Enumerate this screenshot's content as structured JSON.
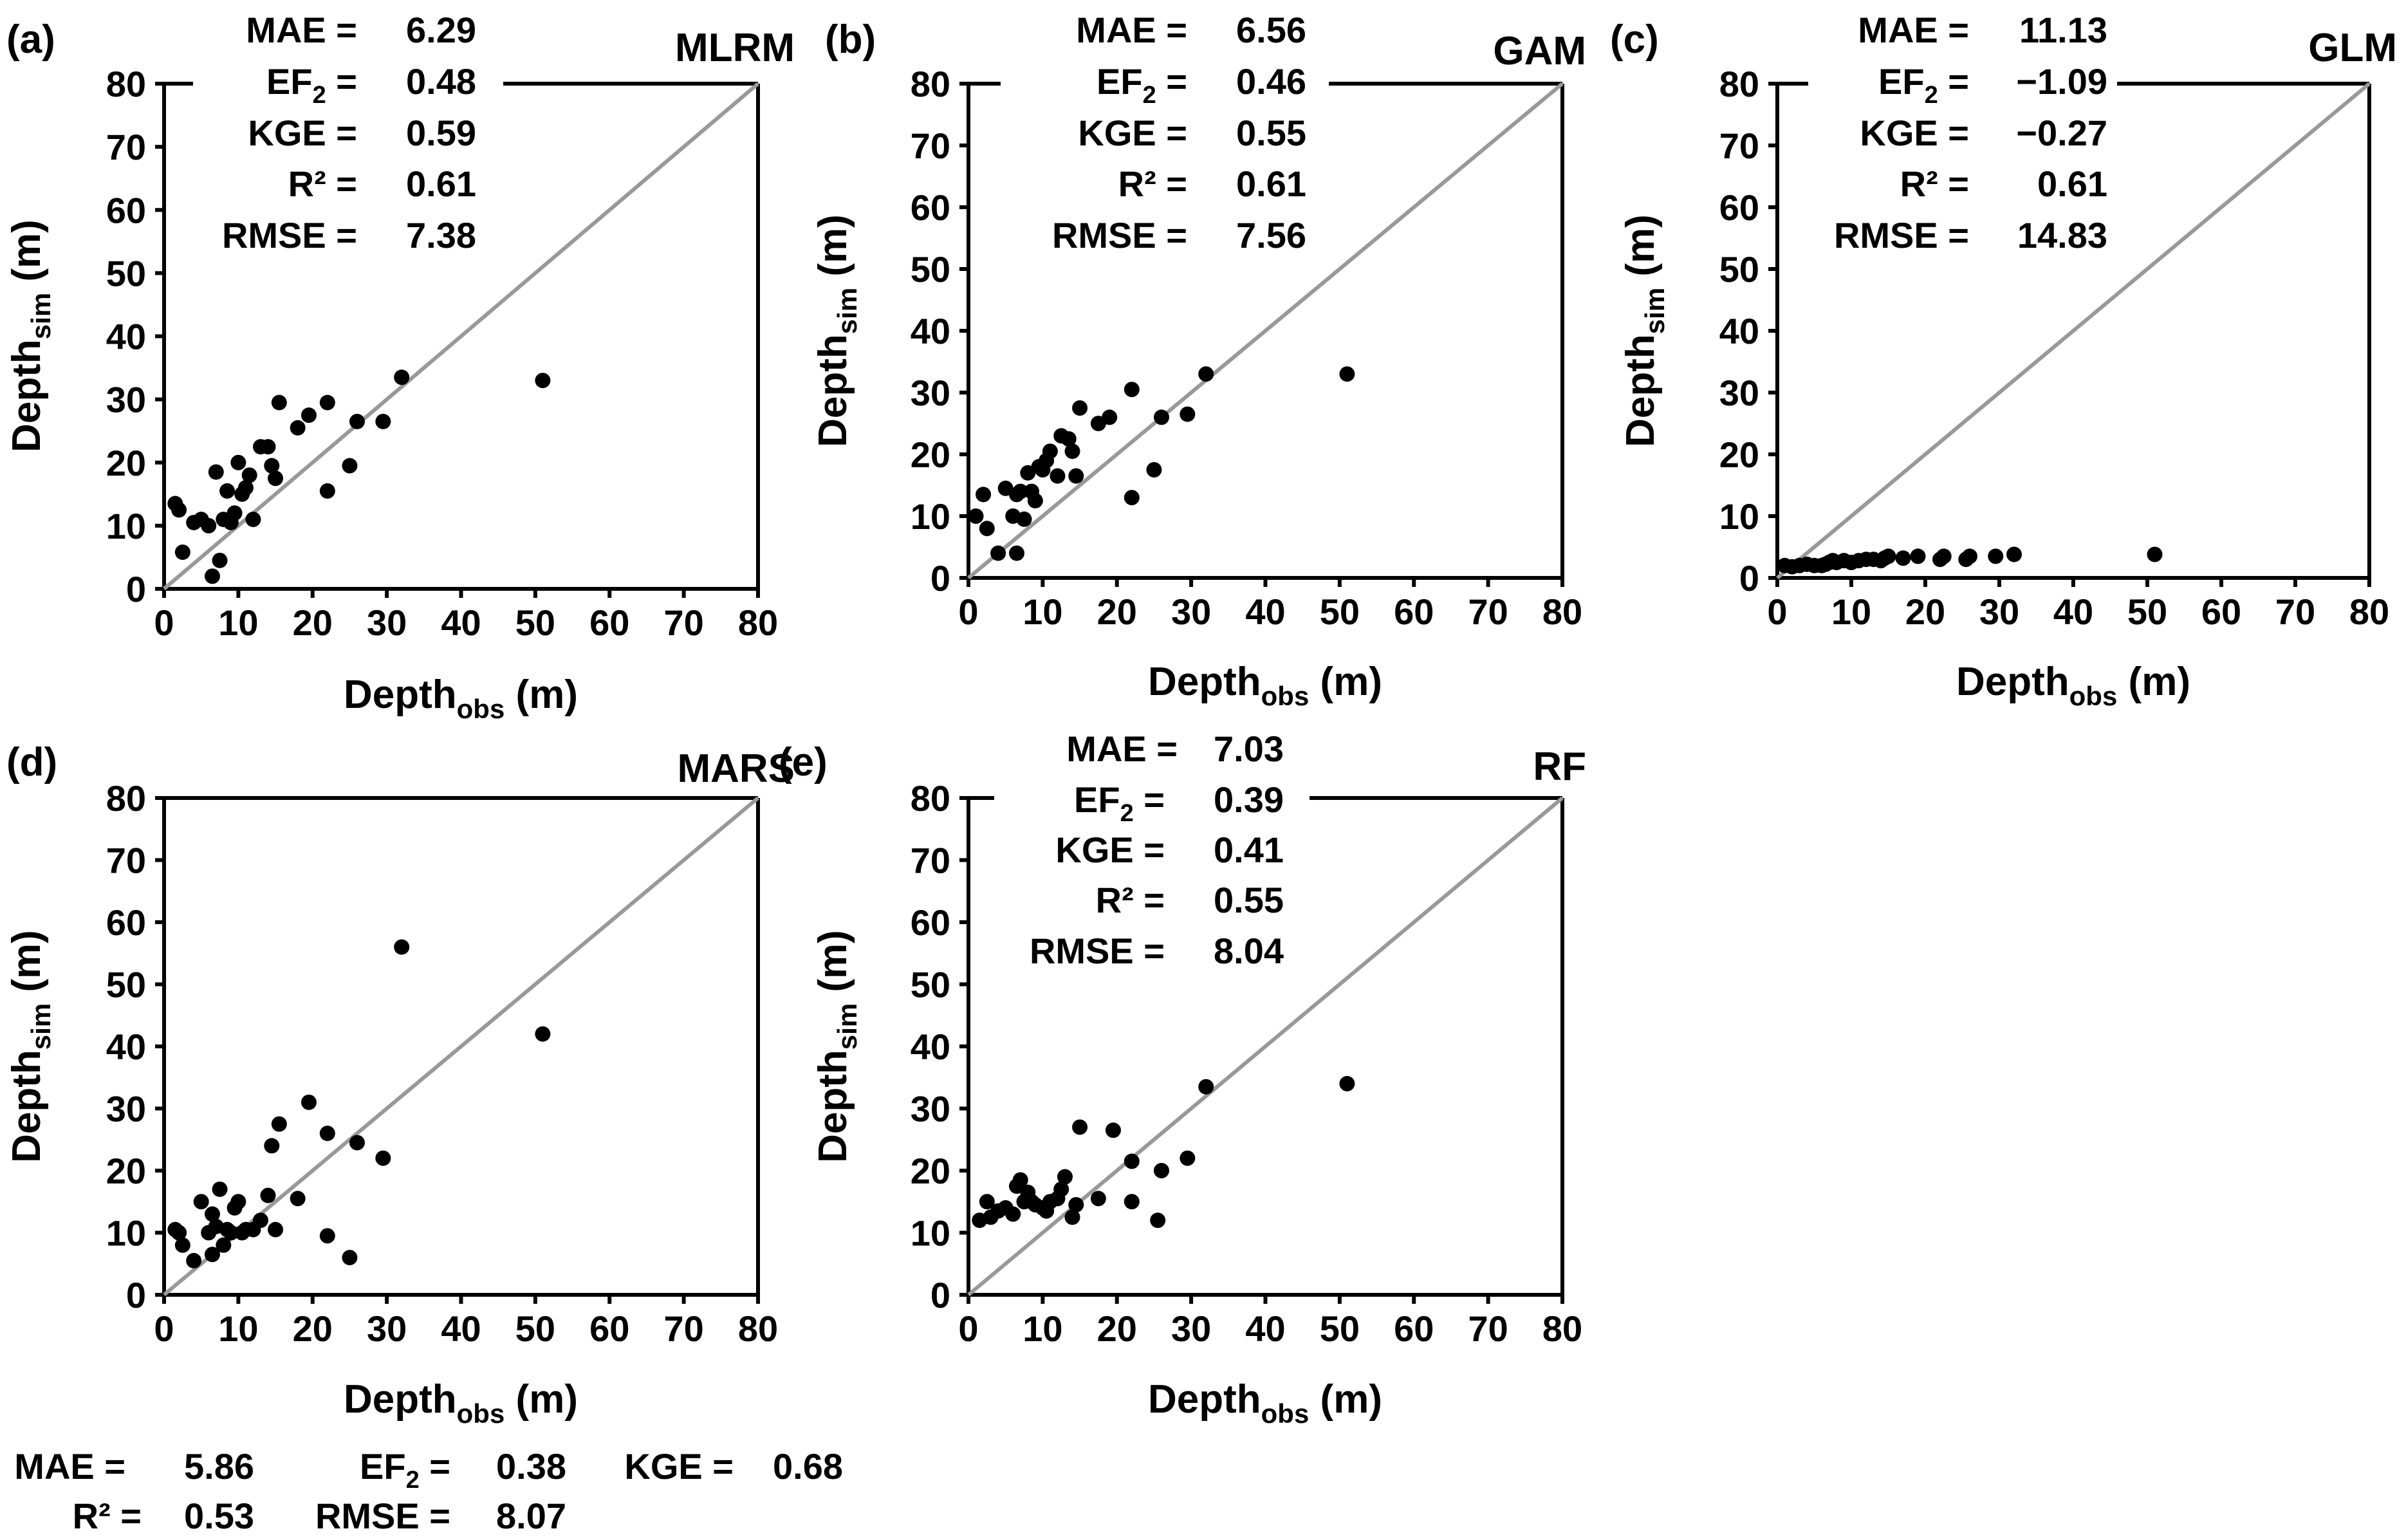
{
  "colors": {
    "axis": "#000000",
    "diagonal": "#999999",
    "points": "#000000",
    "background": "#ffffff"
  },
  "xlabel_main": "Depth",
  "xlabel_sub": "obs",
  "xlabel_unit": " (m)",
  "ylabel_main": "Depth",
  "ylabel_sub": "sim",
  "ylabel_unit": " (m)",
  "stat_names": {
    "mae": "MAE =",
    "ef2_main": "EF",
    "ef2_sub": "2",
    "ef2_eq": " =",
    "kge": "KGE =",
    "r2": "R² =",
    "rmse": "RMSE ="
  },
  "ticks": [
    "0",
    "10",
    "20",
    "30",
    "40",
    "50",
    "60",
    "70",
    "80"
  ],
  "chart_data": [
    {
      "type": "scatter",
      "panel_label": "(a)",
      "model": "MLRM",
      "xlim": [
        0,
        80
      ],
      "ylim": [
        0,
        80
      ],
      "reference_line": "1:1",
      "stats": {
        "mae": "6.29",
        "ef2": "0.48",
        "kge": "0.59",
        "r2": "0.61",
        "rmse": "7.38"
      },
      "points": [
        [
          1.5,
          13.5
        ],
        [
          2,
          12.5
        ],
        [
          2.5,
          5.8
        ],
        [
          4,
          10.5
        ],
        [
          5,
          11
        ],
        [
          6,
          10
        ],
        [
          6.5,
          2
        ],
        [
          7,
          18.5
        ],
        [
          7.5,
          4.5
        ],
        [
          8,
          11
        ],
        [
          8.5,
          15.5
        ],
        [
          9,
          10.5
        ],
        [
          9.5,
          12
        ],
        [
          10,
          20
        ],
        [
          10.5,
          15
        ],
        [
          11,
          16
        ],
        [
          11.5,
          18
        ],
        [
          12,
          11
        ],
        [
          13,
          22.5
        ],
        [
          14,
          22.5
        ],
        [
          14.5,
          19.5
        ],
        [
          15,
          17.5
        ],
        [
          15.5,
          29.5
        ],
        [
          18,
          25.5
        ],
        [
          19.5,
          27.5
        ],
        [
          22,
          15.5
        ],
        [
          22,
          29.5
        ],
        [
          25,
          19.5
        ],
        [
          26,
          26.5
        ],
        [
          29.5,
          26.5
        ],
        [
          32,
          33.5
        ],
        [
          51,
          33
        ]
      ]
    },
    {
      "type": "scatter",
      "panel_label": "(b)",
      "model": "GAM",
      "xlim": [
        0,
        80
      ],
      "ylim": [
        0,
        80
      ],
      "reference_line": "1:1",
      "stats": {
        "mae": "6.56",
        "ef2": "0.46",
        "kge": "0.55",
        "r2": "0.61",
        "rmse": "7.56"
      },
      "points": [
        [
          1,
          10
        ],
        [
          2,
          13.5
        ],
        [
          2.5,
          8
        ],
        [
          4,
          4
        ],
        [
          5,
          14.5
        ],
        [
          6,
          10
        ],
        [
          6.5,
          13.5
        ],
        [
          6.5,
          4
        ],
        [
          7,
          14
        ],
        [
          7.5,
          9.5
        ],
        [
          8,
          17
        ],
        [
          8.5,
          14
        ],
        [
          9,
          12.5
        ],
        [
          9.5,
          18
        ],
        [
          10,
          17.5
        ],
        [
          10.5,
          19
        ],
        [
          11,
          20.5
        ],
        [
          12,
          16.5
        ],
        [
          12.5,
          23
        ],
        [
          13.5,
          22.5
        ],
        [
          14,
          20.5
        ],
        [
          14.5,
          16.5
        ],
        [
          15,
          27.5
        ],
        [
          17.5,
          25
        ],
        [
          19,
          26
        ],
        [
          22,
          13
        ],
        [
          22,
          30.5
        ],
        [
          25,
          17.5
        ],
        [
          26,
          26
        ],
        [
          29.5,
          26.5
        ],
        [
          32,
          33
        ],
        [
          51,
          33
        ]
      ]
    },
    {
      "type": "scatter",
      "panel_label": "(c)",
      "model": "GLM",
      "xlim": [
        0,
        80
      ],
      "ylim": [
        0,
        80
      ],
      "reference_line": "1:1",
      "stats": {
        "mae": "11.13",
        "ef2": "−1.09",
        "kge": "−0.27",
        "r2": "0.61",
        "rmse": "14.83"
      },
      "points": [
        [
          1,
          2
        ],
        [
          2,
          1.8
        ],
        [
          3,
          2
        ],
        [
          4,
          2.2
        ],
        [
          5,
          2
        ],
        [
          6,
          2
        ],
        [
          6.5,
          2.2
        ],
        [
          7,
          2.5
        ],
        [
          7.5,
          2.8
        ],
        [
          8,
          2.5
        ],
        [
          9,
          2.8
        ],
        [
          10,
          2.5
        ],
        [
          11,
          2.8
        ],
        [
          12,
          3
        ],
        [
          13,
          3
        ],
        [
          14,
          2.8
        ],
        [
          14.5,
          3.2
        ],
        [
          15,
          3.5
        ],
        [
          17,
          3.2
        ],
        [
          19,
          3.5
        ],
        [
          22,
          3
        ],
        [
          22.5,
          3.5
        ],
        [
          25.5,
          3
        ],
        [
          26,
          3.5
        ],
        [
          29.5,
          3.5
        ],
        [
          32,
          3.8
        ],
        [
          51,
          3.8
        ]
      ]
    },
    {
      "type": "scatter",
      "panel_label": "(d)",
      "model": "MARS",
      "xlim": [
        0,
        80
      ],
      "ylim": [
        0,
        80
      ],
      "reference_line": "1:1",
      "stats": {
        "mae": "5.86",
        "ef2": "0.38",
        "kge": "0.68",
        "r2": "0.53",
        "rmse": "8.07"
      },
      "points": [
        [
          1.5,
          10.5
        ],
        [
          2,
          10
        ],
        [
          2.5,
          8
        ],
        [
          4,
          5.5
        ],
        [
          5,
          15
        ],
        [
          6,
          10
        ],
        [
          6.5,
          13
        ],
        [
          6.5,
          6.5
        ],
        [
          7,
          11
        ],
        [
          7.5,
          17
        ],
        [
          8,
          8
        ],
        [
          8.5,
          10.5
        ],
        [
          9,
          10
        ],
        [
          9.5,
          14
        ],
        [
          10,
          15
        ],
        [
          10.5,
          10
        ],
        [
          11,
          10.5
        ],
        [
          12,
          10.5
        ],
        [
          13,
          12
        ],
        [
          14,
          16
        ],
        [
          14.5,
          24
        ],
        [
          15,
          10.5
        ],
        [
          15.5,
          27.5
        ],
        [
          18,
          15.5
        ],
        [
          19.5,
          31
        ],
        [
          22,
          9.5
        ],
        [
          22,
          26
        ],
        [
          25,
          6
        ],
        [
          26,
          24.5
        ],
        [
          29.5,
          22
        ],
        [
          32,
          56
        ],
        [
          51,
          42
        ]
      ]
    },
    {
      "type": "scatter",
      "panel_label": "(e)",
      "model": "RF",
      "xlim": [
        0,
        80
      ],
      "ylim": [
        0,
        80
      ],
      "reference_line": "1:1",
      "stats": {
        "mae": "7.03",
        "ef2": "0.39",
        "kge": "0.41",
        "r2": "0.55",
        "rmse": "8.04"
      },
      "points": [
        [
          1.5,
          12
        ],
        [
          2.5,
          15
        ],
        [
          3,
          12.5
        ],
        [
          4,
          13.5
        ],
        [
          5,
          14
        ],
        [
          6,
          13
        ],
        [
          6.5,
          17.5
        ],
        [
          7,
          18.5
        ],
        [
          7.5,
          15
        ],
        [
          8,
          16.5
        ],
        [
          8.5,
          15
        ],
        [
          9,
          14.5
        ],
        [
          10,
          14
        ],
        [
          10.5,
          13.5
        ],
        [
          11,
          15
        ],
        [
          12,
          15.5
        ],
        [
          12.5,
          17
        ],
        [
          13,
          19
        ],
        [
          14,
          12.5
        ],
        [
          14.5,
          14.5
        ],
        [
          15,
          27
        ],
        [
          17.5,
          15.5
        ],
        [
          19.5,
          26.5
        ],
        [
          22,
          15
        ],
        [
          22,
          21.5
        ],
        [
          25.5,
          12
        ],
        [
          26,
          20
        ],
        [
          29.5,
          22
        ],
        [
          32,
          33.5
        ],
        [
          51,
          34
        ]
      ]
    }
  ]
}
